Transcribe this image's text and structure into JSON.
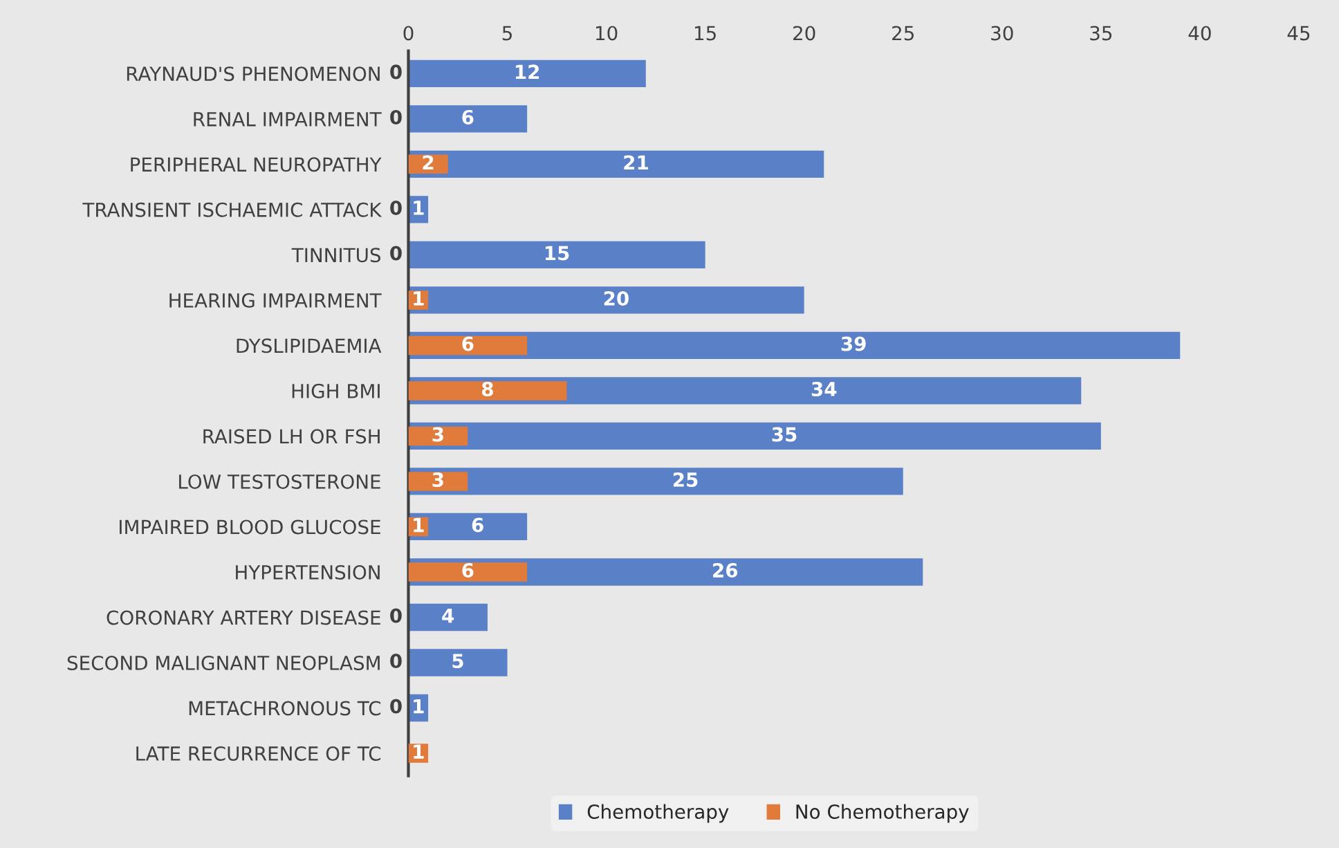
{
  "chart_data": {
    "type": "bar",
    "orientation": "horizontal",
    "stacked": false,
    "categories": [
      "RAYNAUD'S PHENOMENON",
      "RENAL IMPAIRMENT",
      "PERIPHERAL NEUROPATHY",
      "TRANSIENT ISCHAEMIC ATTACK",
      "TINNITUS",
      "HEARING IMPAIRMENT",
      "DYSLIPIDAEMIA",
      "HIGH BMI",
      "RAISED LH OR FSH",
      "LOW TESTOSTERONE",
      "IMPAIRED BLOOD GLUCOSE",
      "HYPERTENSION",
      "CORONARY ARTERY DISEASE",
      "SECOND MALIGNANT NEOPLASM",
      "METACHRONOUS TC",
      "LATE RECURRENCE OF TC"
    ],
    "series": [
      {
        "name": "Chemotherapy",
        "color": "#5a80c8",
        "values": [
          12,
          6,
          21,
          1,
          15,
          20,
          39,
          34,
          35,
          25,
          6,
          26,
          4,
          5,
          1,
          null
        ]
      },
      {
        "name": "No Chemotherapy",
        "color": "#e07b3c",
        "values": [
          0,
          0,
          2,
          0,
          0,
          1,
          6,
          8,
          3,
          3,
          1,
          6,
          0,
          0,
          0,
          1
        ]
      }
    ],
    "xlim": [
      0,
      45
    ],
    "xticks": [
      0,
      5,
      10,
      15,
      20,
      25,
      30,
      35,
      40,
      45
    ],
    "data_labels": true,
    "grid": false,
    "legend": "bottom"
  }
}
